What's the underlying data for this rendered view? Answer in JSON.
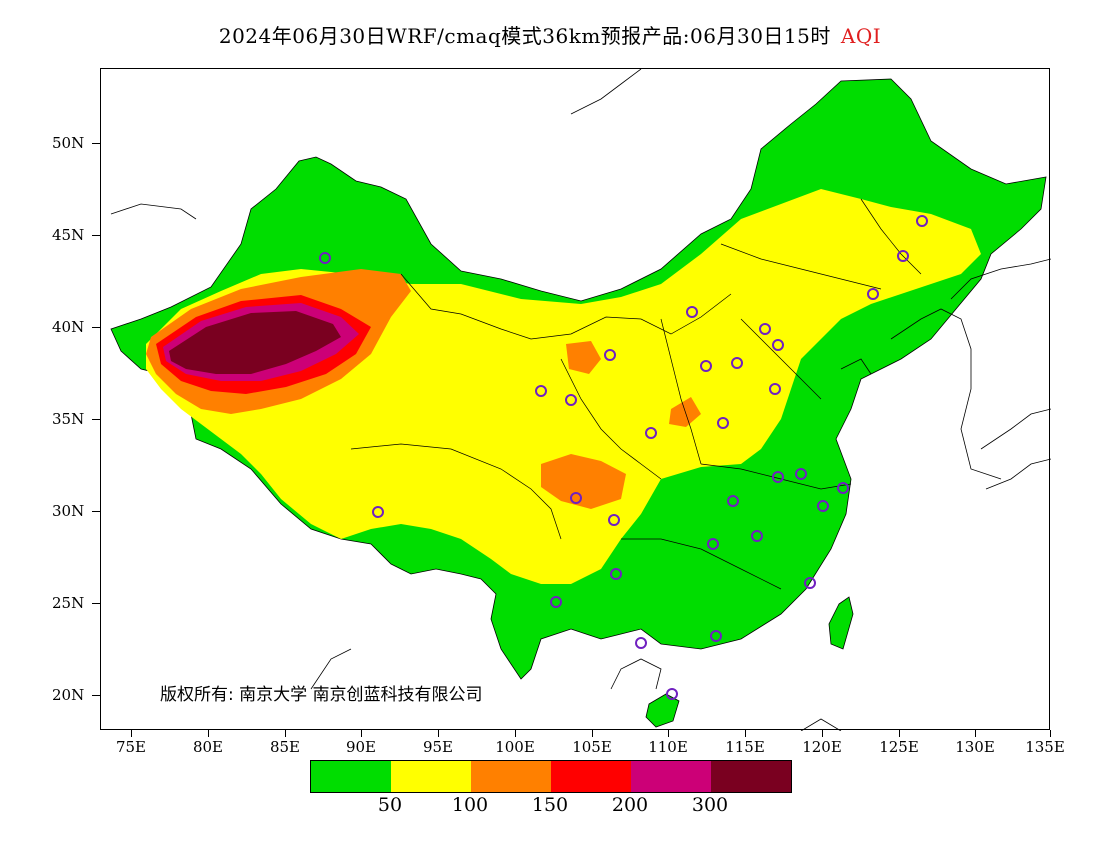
{
  "title": {
    "text": "2024年06月30日WRF/cmaq模式36km预报产品:06月30日15时",
    "variable": "AQI",
    "variable_color": "#e02020"
  },
  "axes": {
    "y_labels": [
      "50N",
      "45N",
      "40N",
      "35N",
      "30N",
      "25N",
      "20N"
    ],
    "x_labels": [
      "75E",
      "80E",
      "85E",
      "90E",
      "95E",
      "100E",
      "105E",
      "110E",
      "115E",
      "120E",
      "125E",
      "130E",
      "135E"
    ]
  },
  "copyright": "版权所有: 南京大学  南京创蓝科技有限公司",
  "legend": {
    "colors": [
      "#00dd00",
      "#ffff00",
      "#ff8000",
      "#ff0000",
      "#cc0077",
      "#7a0020"
    ],
    "thresholds": [
      "50",
      "100",
      "150",
      "200",
      "300"
    ]
  },
  "colors": {
    "good": "#00dd00",
    "moderate": "#ffff00",
    "sensitive": "#ff8000",
    "unhealthy": "#ff0000",
    "very_unhealthy": "#cc0077",
    "hazardous": "#7a0020",
    "station_marker": "#7020c0"
  }
}
